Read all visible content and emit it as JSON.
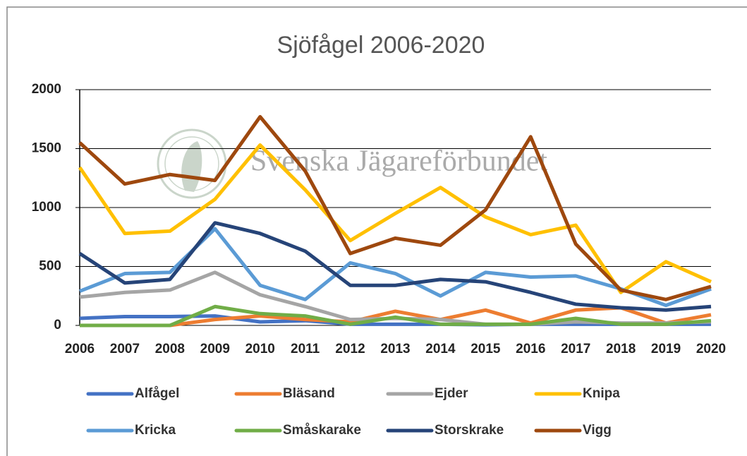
{
  "chart_data": {
    "type": "line",
    "title": "Sjöfågel 2006-2020",
    "watermark": "Svenska Jägareförbundet",
    "categories": [
      "2006",
      "2007",
      "2008",
      "2009",
      "2010",
      "2011",
      "2012",
      "2013",
      "2014",
      "2015",
      "2016",
      "2017",
      "2018",
      "2019",
      "2020"
    ],
    "ylim": [
      0,
      2000
    ],
    "yticks": [
      0,
      500,
      1000,
      1500,
      2000
    ],
    "grid": true,
    "legend": "bottom",
    "series": [
      {
        "name": "Alfågel",
        "color": "#4472c4",
        "values": [
          60,
          75,
          75,
          80,
          30,
          40,
          10,
          10,
          10,
          5,
          10,
          10,
          10,
          10,
          10
        ]
      },
      {
        "name": "Bläsand",
        "color": "#ed7d31",
        "values": [
          0,
          0,
          0,
          50,
          80,
          50,
          30,
          120,
          50,
          130,
          20,
          130,
          150,
          20,
          90
        ]
      },
      {
        "name": "Ejder",
        "color": "#a5a5a5",
        "values": [
          240,
          280,
          300,
          450,
          260,
          160,
          50,
          60,
          50,
          10,
          10,
          30,
          20,
          20,
          30
        ]
      },
      {
        "name": "Knipa",
        "color": "#ffc000",
        "values": [
          1340,
          780,
          800,
          1070,
          1530,
          1150,
          720,
          950,
          1170,
          920,
          770,
          850,
          280,
          540,
          370
        ]
      },
      {
        "name": "Kricka",
        "color": "#5b9bd5",
        "values": [
          290,
          440,
          450,
          820,
          340,
          220,
          530,
          440,
          250,
          450,
          410,
          420,
          310,
          170,
          310
        ]
      },
      {
        "name": "Småskarake",
        "color": "#70ad47",
        "values": [
          0,
          0,
          0,
          160,
          100,
          80,
          10,
          70,
          10,
          10,
          10,
          60,
          10,
          10,
          40
        ]
      },
      {
        "name": "Storskrake",
        "color": "#264478",
        "values": [
          610,
          360,
          390,
          870,
          780,
          630,
          340,
          340,
          390,
          370,
          280,
          180,
          150,
          130,
          160
        ]
      },
      {
        "name": "Vigg",
        "color": "#9e480e",
        "values": [
          1550,
          1200,
          1280,
          1230,
          1770,
          1310,
          610,
          740,
          680,
          980,
          1600,
          690,
          300,
          220,
          330
        ]
      }
    ]
  }
}
